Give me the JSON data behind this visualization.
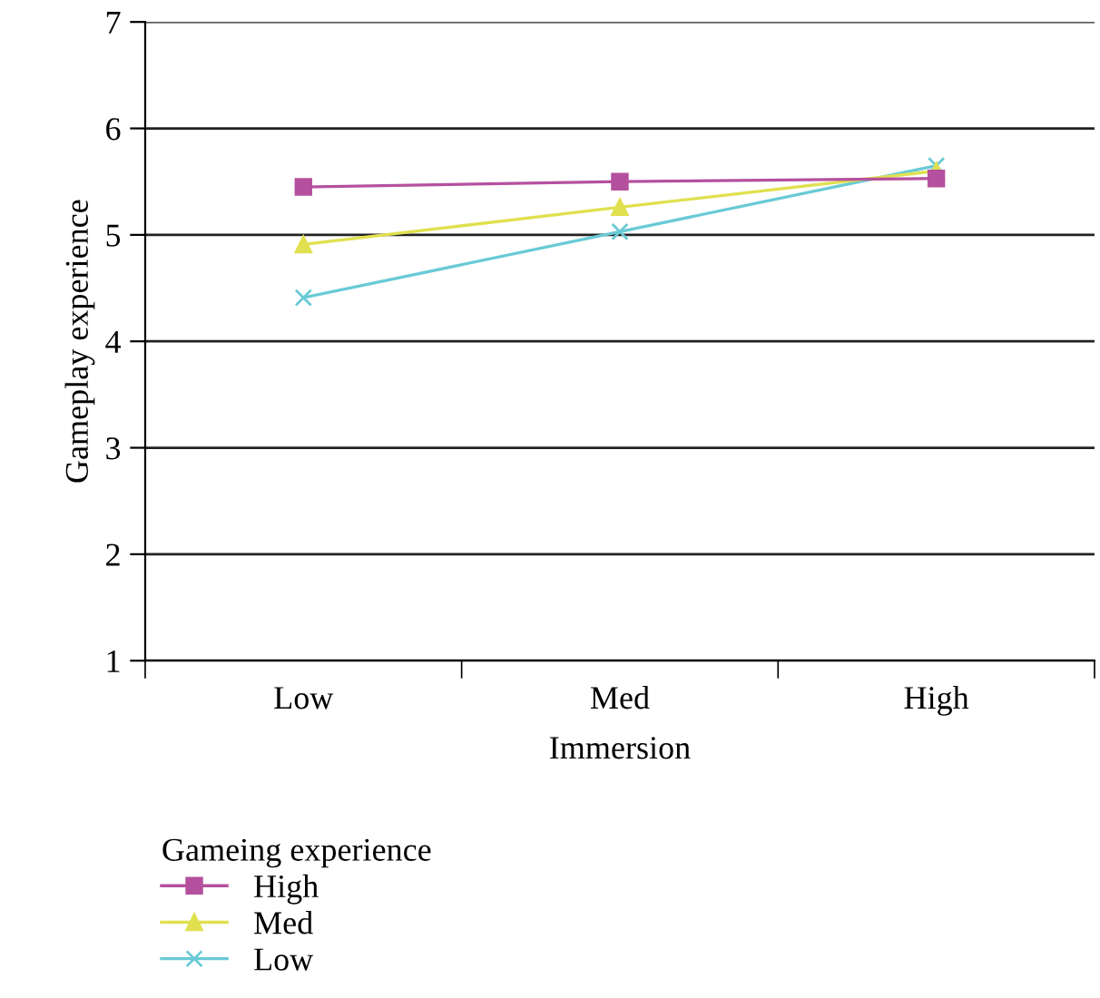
{
  "chart_data": {
    "type": "line",
    "xlabel": "Immersion",
    "ylabel": "Gameplay experience",
    "legend_title": "Gameing experience",
    "categories": [
      "Low",
      "Med",
      "High"
    ],
    "series": [
      {
        "name": "High",
        "color": "#b5509e",
        "marker": "square",
        "values": [
          5.45,
          5.5,
          5.53
        ]
      },
      {
        "name": "Med",
        "color": "#e0e050",
        "marker": "triangle",
        "values": [
          4.91,
          5.26,
          5.6
        ]
      },
      {
        "name": "Low",
        "color": "#6acad6",
        "marker": "cross",
        "values": [
          4.41,
          5.03,
          5.65
        ]
      }
    ],
    "ylim": [
      1,
      7
    ],
    "yticks": [
      1,
      2,
      3,
      4,
      5,
      6,
      7
    ],
    "grid": "y",
    "legend": "bottom left"
  }
}
